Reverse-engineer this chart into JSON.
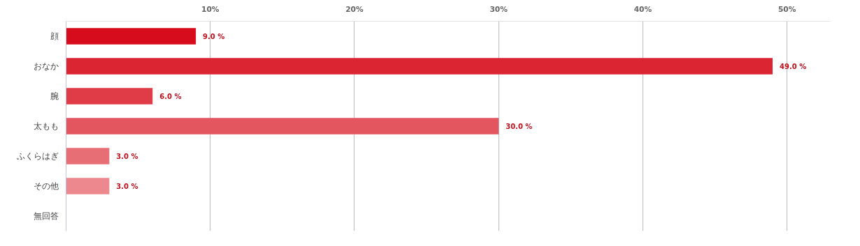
{
  "chart_data": {
    "type": "bar",
    "orientation": "horizontal",
    "categories": [
      "顔",
      "おなか",
      "腕",
      "太もも",
      "ふくらはぎ",
      "その他",
      "無回答"
    ],
    "values": [
      9,
      49,
      6,
      30,
      3,
      3,
      null
    ],
    "colors": [
      "#d60c1c",
      "#dc2532",
      "#e03c48",
      "#e3555f",
      "#e86e76",
      "#ec888e",
      "#f0a1a5"
    ],
    "value_labels": [
      "9.0 %",
      "49.0 %",
      "6.0 %",
      "30.0 %",
      "3.0 %",
      "3.0 %",
      null
    ],
    "xlim": [
      0,
      53
    ],
    "xticks": [
      {
        "value": 10,
        "label": "10%"
      },
      {
        "value": 20,
        "label": "20%"
      },
      {
        "value": 30,
        "label": "30%"
      },
      {
        "value": 40,
        "label": "40%"
      },
      {
        "value": 50,
        "label": "50%"
      }
    ],
    "grid": "x"
  }
}
